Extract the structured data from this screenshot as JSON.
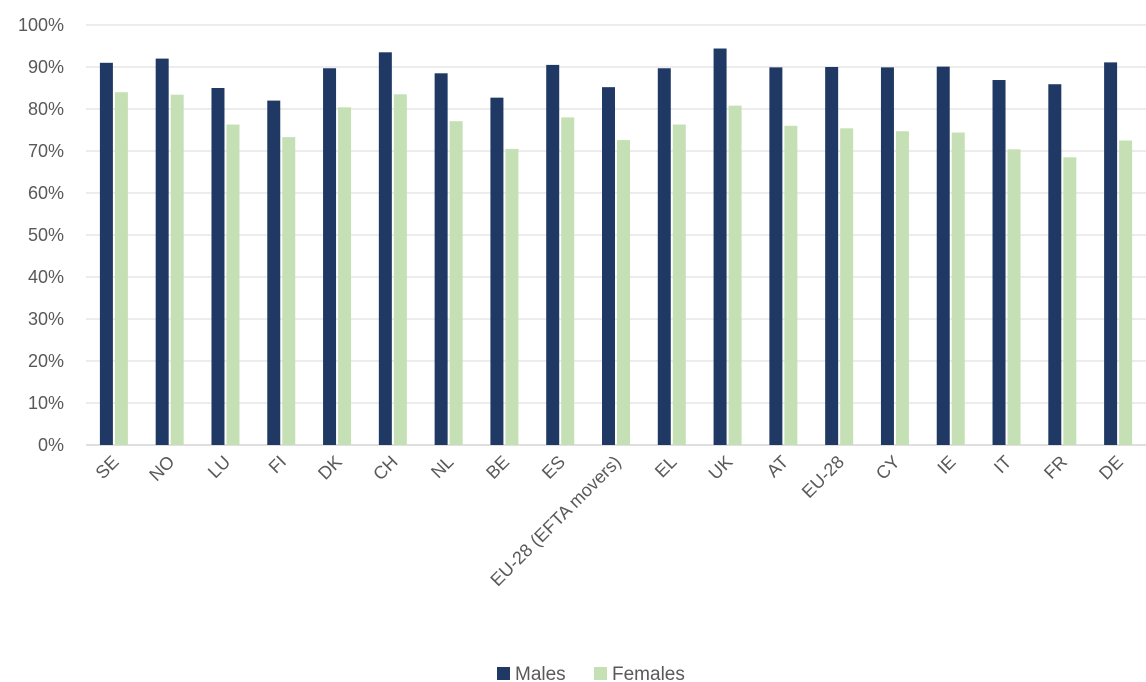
{
  "chart_data": {
    "type": "bar",
    "title": "",
    "xlabel": "",
    "ylabel": "",
    "categories": [
      "SE",
      "NO",
      "LU",
      "FI",
      "DK",
      "CH",
      "NL",
      "BE",
      "ES",
      "EU-28 (EFTA movers)",
      "EL",
      "UK",
      "AT",
      "EU-28",
      "CY",
      "IE",
      "IT",
      "FR",
      "DE"
    ],
    "series": [
      {
        "name": "Males",
        "color": "#1f3864",
        "values": [
          0.91,
          0.92,
          0.85,
          0.82,
          0.897,
          0.935,
          0.885,
          0.827,
          0.905,
          0.852,
          0.897,
          0.944,
          0.899,
          0.9,
          0.899,
          0.901,
          0.869,
          0.859,
          0.911
        ]
      },
      {
        "name": "Females",
        "color": "#c5e0b4",
        "values": [
          0.84,
          0.834,
          0.763,
          0.733,
          0.804,
          0.835,
          0.771,
          0.705,
          0.78,
          0.726,
          0.763,
          0.808,
          0.76,
          0.754,
          0.747,
          0.744,
          0.704,
          0.685,
          0.725
        ]
      }
    ],
    "ylim": [
      0,
      1
    ],
    "yticks": [
      "0%",
      "10%",
      "20%",
      "30%",
      "40%",
      "50%",
      "60%",
      "70%",
      "80%",
      "90%",
      "100%"
    ],
    "grid": true,
    "legend_position": "bottom"
  }
}
